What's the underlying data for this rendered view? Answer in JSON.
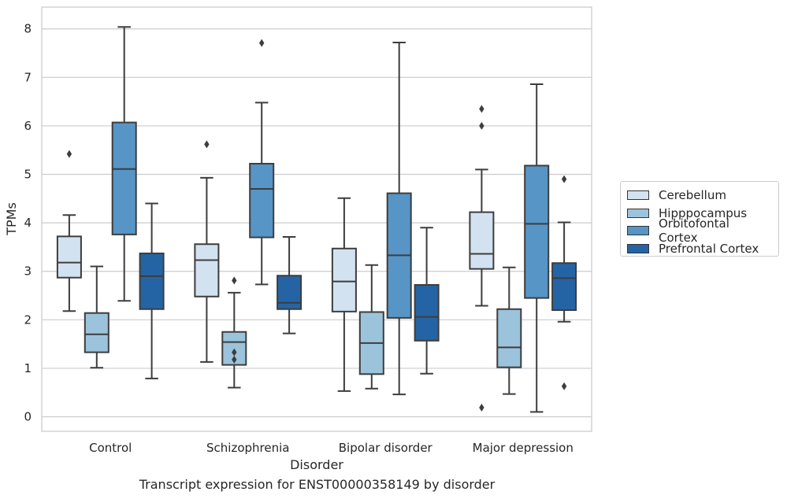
{
  "caption": "Transcript expression for ENST00000358149 by disorder",
  "chart_data": {
    "type": "box",
    "title": "",
    "xlabel": "Disorder",
    "ylabel": "TPMs",
    "ylim": [
      -0.3,
      8.45
    ],
    "yticks": [
      0,
      1,
      2,
      3,
      4,
      5,
      6,
      7,
      8
    ],
    "grid": "horizontal",
    "legend_position": "right",
    "categories": [
      "Control",
      "Schizophrenia",
      "Bipolar disorder",
      "Major depression"
    ],
    "series": [
      {
        "name": "Cerebellum",
        "color": "#d3e2f1",
        "boxes": [
          {
            "whisker_low": 2.18,
            "q1": 2.87,
            "median": 3.18,
            "q3": 3.72,
            "whisker_high": 4.16,
            "outliers": [
              5.42
            ]
          },
          {
            "whisker_low": 1.13,
            "q1": 2.48,
            "median": 3.23,
            "q3": 3.56,
            "whisker_high": 4.93,
            "outliers": [
              5.62
            ]
          },
          {
            "whisker_low": 0.53,
            "q1": 2.17,
            "median": 2.79,
            "q3": 3.47,
            "whisker_high": 4.51,
            "outliers": []
          },
          {
            "whisker_low": 2.29,
            "q1": 3.05,
            "median": 3.36,
            "q3": 4.22,
            "whisker_high": 5.1,
            "outliers": [
              0.19,
              6.0,
              6.35
            ]
          }
        ]
      },
      {
        "name": "Hipppocampus",
        "color": "#9cc3dc",
        "boxes": [
          {
            "whisker_low": 1.01,
            "q1": 1.33,
            "median": 1.7,
            "q3": 2.14,
            "whisker_high": 3.1,
            "outliers": []
          },
          {
            "whisker_low": 0.6,
            "q1": 1.07,
            "median": 1.54,
            "q3": 1.75,
            "whisker_high": 2.56,
            "outliers": [
              2.81,
              1.33,
              1.18
            ]
          },
          {
            "whisker_low": 0.58,
            "q1": 0.88,
            "median": 1.52,
            "q3": 2.16,
            "whisker_high": 3.13,
            "outliers": []
          },
          {
            "whisker_low": 0.47,
            "q1": 1.02,
            "median": 1.43,
            "q3": 2.22,
            "whisker_high": 3.08,
            "outliers": []
          }
        ]
      },
      {
        "name": "Orbitofontal Cortex",
        "color": "#5795c6",
        "boxes": [
          {
            "whisker_low": 2.39,
            "q1": 3.76,
            "median": 5.11,
            "q3": 6.07,
            "whisker_high": 8.04,
            "outliers": []
          },
          {
            "whisker_low": 2.73,
            "q1": 3.7,
            "median": 4.7,
            "q3": 5.22,
            "whisker_high": 6.48,
            "outliers": [
              7.71
            ]
          },
          {
            "whisker_low": 0.46,
            "q1": 2.04,
            "median": 3.33,
            "q3": 4.61,
            "whisker_high": 7.72,
            "outliers": []
          },
          {
            "whisker_low": 0.1,
            "q1": 2.45,
            "median": 3.98,
            "q3": 5.18,
            "whisker_high": 6.86,
            "outliers": []
          }
        ]
      },
      {
        "name": "Prefrontal Cortex",
        "color": "#2564a4",
        "boxes": [
          {
            "whisker_low": 0.79,
            "q1": 2.22,
            "median": 2.9,
            "q3": 3.37,
            "whisker_high": 4.4,
            "outliers": []
          },
          {
            "whisker_low": 1.72,
            "q1": 2.22,
            "median": 2.35,
            "q3": 2.91,
            "whisker_high": 3.71,
            "outliers": []
          },
          {
            "whisker_low": 0.89,
            "q1": 1.57,
            "median": 2.06,
            "q3": 2.72,
            "whisker_high": 3.9,
            "outliers": []
          },
          {
            "whisker_low": 1.96,
            "q1": 2.2,
            "median": 2.86,
            "q3": 3.17,
            "whisker_high": 4.01,
            "outliers": [
              4.9,
              0.63
            ]
          }
        ]
      }
    ]
  }
}
